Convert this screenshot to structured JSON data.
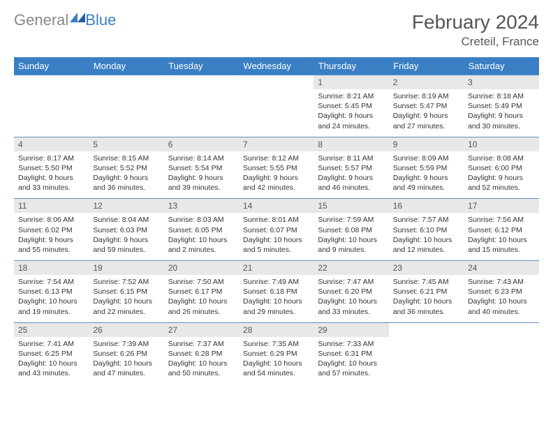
{
  "logo": {
    "text1": "General",
    "text2": "Blue"
  },
  "title": "February 2024",
  "location": "Creteil, France",
  "colors": {
    "header_bg": "#3a7fc4",
    "header_text": "#ffffff",
    "daynum_bg": "#e8e8e8",
    "border": "#6090c0",
    "text": "#333333"
  },
  "weekdays": [
    "Sunday",
    "Monday",
    "Tuesday",
    "Wednesday",
    "Thursday",
    "Friday",
    "Saturday"
  ],
  "weeks": [
    [
      null,
      null,
      null,
      null,
      {
        "n": "1",
        "sunrise": "8:21 AM",
        "sunset": "5:45 PM",
        "daylight": "9 hours and 24 minutes."
      },
      {
        "n": "2",
        "sunrise": "8:19 AM",
        "sunset": "5:47 PM",
        "daylight": "9 hours and 27 minutes."
      },
      {
        "n": "3",
        "sunrise": "8:18 AM",
        "sunset": "5:49 PM",
        "daylight": "9 hours and 30 minutes."
      }
    ],
    [
      {
        "n": "4",
        "sunrise": "8:17 AM",
        "sunset": "5:50 PM",
        "daylight": "9 hours and 33 minutes."
      },
      {
        "n": "5",
        "sunrise": "8:15 AM",
        "sunset": "5:52 PM",
        "daylight": "9 hours and 36 minutes."
      },
      {
        "n": "6",
        "sunrise": "8:14 AM",
        "sunset": "5:54 PM",
        "daylight": "9 hours and 39 minutes."
      },
      {
        "n": "7",
        "sunrise": "8:12 AM",
        "sunset": "5:55 PM",
        "daylight": "9 hours and 42 minutes."
      },
      {
        "n": "8",
        "sunrise": "8:11 AM",
        "sunset": "5:57 PM",
        "daylight": "9 hours and 46 minutes."
      },
      {
        "n": "9",
        "sunrise": "8:09 AM",
        "sunset": "5:59 PM",
        "daylight": "9 hours and 49 minutes."
      },
      {
        "n": "10",
        "sunrise": "8:08 AM",
        "sunset": "6:00 PM",
        "daylight": "9 hours and 52 minutes."
      }
    ],
    [
      {
        "n": "11",
        "sunrise": "8:06 AM",
        "sunset": "6:02 PM",
        "daylight": "9 hours and 55 minutes."
      },
      {
        "n": "12",
        "sunrise": "8:04 AM",
        "sunset": "6:03 PM",
        "daylight": "9 hours and 59 minutes."
      },
      {
        "n": "13",
        "sunrise": "8:03 AM",
        "sunset": "6:05 PM",
        "daylight": "10 hours and 2 minutes."
      },
      {
        "n": "14",
        "sunrise": "8:01 AM",
        "sunset": "6:07 PM",
        "daylight": "10 hours and 5 minutes."
      },
      {
        "n": "15",
        "sunrise": "7:59 AM",
        "sunset": "6:08 PM",
        "daylight": "10 hours and 9 minutes."
      },
      {
        "n": "16",
        "sunrise": "7:57 AM",
        "sunset": "6:10 PM",
        "daylight": "10 hours and 12 minutes."
      },
      {
        "n": "17",
        "sunrise": "7:56 AM",
        "sunset": "6:12 PM",
        "daylight": "10 hours and 15 minutes."
      }
    ],
    [
      {
        "n": "18",
        "sunrise": "7:54 AM",
        "sunset": "6:13 PM",
        "daylight": "10 hours and 19 minutes."
      },
      {
        "n": "19",
        "sunrise": "7:52 AM",
        "sunset": "6:15 PM",
        "daylight": "10 hours and 22 minutes."
      },
      {
        "n": "20",
        "sunrise": "7:50 AM",
        "sunset": "6:17 PM",
        "daylight": "10 hours and 26 minutes."
      },
      {
        "n": "21",
        "sunrise": "7:49 AM",
        "sunset": "6:18 PM",
        "daylight": "10 hours and 29 minutes."
      },
      {
        "n": "22",
        "sunrise": "7:47 AM",
        "sunset": "6:20 PM",
        "daylight": "10 hours and 33 minutes."
      },
      {
        "n": "23",
        "sunrise": "7:45 AM",
        "sunset": "6:21 PM",
        "daylight": "10 hours and 36 minutes."
      },
      {
        "n": "24",
        "sunrise": "7:43 AM",
        "sunset": "6:23 PM",
        "daylight": "10 hours and 40 minutes."
      }
    ],
    [
      {
        "n": "25",
        "sunrise": "7:41 AM",
        "sunset": "6:25 PM",
        "daylight": "10 hours and 43 minutes."
      },
      {
        "n": "26",
        "sunrise": "7:39 AM",
        "sunset": "6:26 PM",
        "daylight": "10 hours and 47 minutes."
      },
      {
        "n": "27",
        "sunrise": "7:37 AM",
        "sunset": "6:28 PM",
        "daylight": "10 hours and 50 minutes."
      },
      {
        "n": "28",
        "sunrise": "7:35 AM",
        "sunset": "6:29 PM",
        "daylight": "10 hours and 54 minutes."
      },
      {
        "n": "29",
        "sunrise": "7:33 AM",
        "sunset": "6:31 PM",
        "daylight": "10 hours and 57 minutes."
      },
      null,
      null
    ]
  ],
  "labels": {
    "sunrise": "Sunrise:",
    "sunset": "Sunset:",
    "daylight": "Daylight:"
  }
}
